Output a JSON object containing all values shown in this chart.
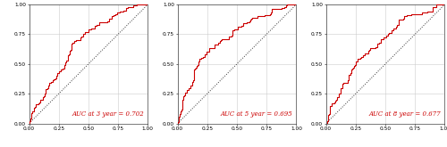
{
  "panels": [
    {
      "auc": 0.702,
      "label": "AUC at 3 year = 0.702",
      "seed": 42
    },
    {
      "auc": 0.695,
      "label": "AUC at 5 year = 0.695",
      "seed": 123
    },
    {
      "auc": 0.677,
      "label": "AUC at 8 year = 0.677",
      "seed": 7
    }
  ],
  "roc_color": "#cc0000",
  "diag_color": "#333333",
  "grid_color": "#cccccc",
  "background_color": "#ffffff",
  "text_color": "#cc0000",
  "roc_linewidth": 0.8,
  "diag_linewidth": 0.7,
  "tick_labels": [
    "0.00",
    "0.25",
    "0.50",
    "0.75",
    "1.00"
  ],
  "tick_values": [
    0.0,
    0.25,
    0.5,
    0.75,
    1.0
  ],
  "xlim": [
    0.0,
    1.0
  ],
  "ylim": [
    0.0,
    1.0
  ],
  "annotation_fontsize": 5.0,
  "tick_fontsize": 4.2
}
